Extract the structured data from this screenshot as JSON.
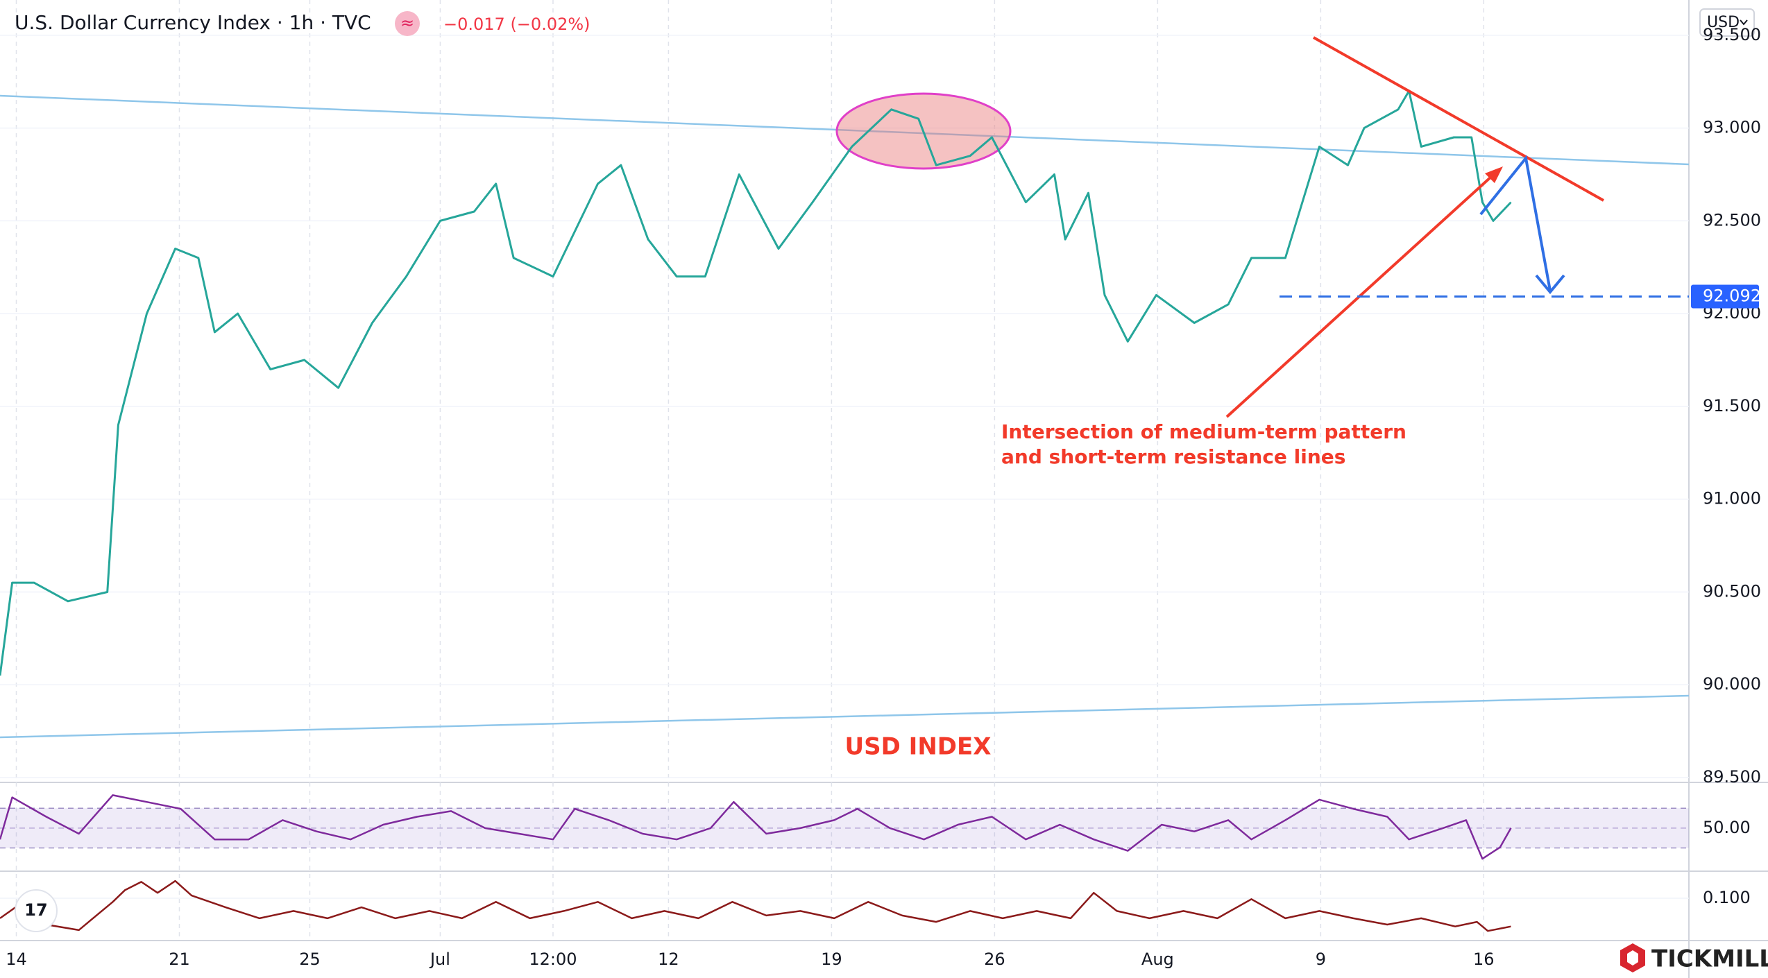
{
  "chart_data": [
    {
      "type": "line",
      "title": "U.S. Dollar Currency Index · 1h · TVC",
      "change": "−0.017 (−0.02%)",
      "currency": "USD",
      "color": "#26a69a",
      "x": [
        -12,
        -3,
        13,
        38,
        67,
        75,
        96,
        117,
        134,
        146,
        163,
        187,
        212,
        237,
        262,
        287,
        312,
        337,
        353,
        366,
        395,
        428,
        445,
        465,
        486,
        507,
        532,
        561,
        586,
        615,
        644,
        664,
        677,
        702,
        718,
        743,
        764,
        772,
        789,
        801,
        818,
        839,
        867,
        892,
        909,
        934,
        959,
        980,
        992,
        1017,
        1025,
        1034,
        1058,
        1071,
        1079,
        1087,
        1100
      ],
      "values": [
        90.05,
        90.55,
        90.55,
        90.45,
        90.5,
        91.4,
        92.0,
        92.35,
        92.3,
        91.9,
        92.0,
        91.7,
        91.75,
        91.6,
        91.95,
        92.2,
        92.5,
        92.55,
        92.7,
        92.3,
        92.2,
        92.7,
        92.8,
        92.4,
        92.2,
        92.2,
        92.75,
        92.35,
        92.6,
        92.9,
        93.1,
        93.05,
        92.8,
        92.85,
        92.95,
        92.6,
        92.75,
        92.4,
        92.65,
        92.1,
        91.85,
        92.1,
        91.95,
        92.05,
        92.3,
        92.3,
        92.9,
        92.8,
        93.0,
        93.1,
        93.2,
        92.9,
        92.95,
        92.95,
        92.6,
        92.5,
        92.6
      ],
      "xlim": [
        -12,
        1231
      ],
      "xticks": [
        {
          "value": 0,
          "label": "14"
        },
        {
          "value": 120,
          "label": "21"
        },
        {
          "value": 216,
          "label": "25"
        },
        {
          "value": 312,
          "label": "Jul"
        },
        {
          "value": 395,
          "label": "12:00"
        },
        {
          "value": 480,
          "label": "12"
        },
        {
          "value": 600,
          "label": "19"
        },
        {
          "value": 720,
          "label": "26"
        },
        {
          "value": 840,
          "label": "Aug"
        },
        {
          "value": 960,
          "label": "9"
        },
        {
          "value": 1080,
          "label": "16"
        }
      ],
      "ylim": [
        89.5,
        93.69
      ],
      "yticks": [
        {
          "value": 89.5,
          "label": "89.500"
        },
        {
          "value": 90,
          "label": "90.000"
        },
        {
          "value": 90.5,
          "label": "90.500"
        },
        {
          "value": 91,
          "label": "91.000"
        },
        {
          "value": 91.5,
          "label": "91.500"
        },
        {
          "value": 92,
          "label": "92.000"
        },
        {
          "value": 92.5,
          "label": "92.500"
        },
        {
          "value": 93,
          "label": "93.000"
        },
        {
          "value": 93.5,
          "label": "93.500"
        }
      ],
      "price_line": {
        "value": 92.092,
        "label": "92.092"
      },
      "annotations": [
        "Intersection of medium-term pattern",
        "and short-term resistance lines"
      ],
      "label": "USD INDEX",
      "brand": "TICKMILL"
    },
    {
      "type": "line",
      "color": "#7e2a9c",
      "x": [
        -12,
        -3,
        22,
        46,
        71,
        96,
        121,
        146,
        171,
        196,
        221,
        246,
        270,
        295,
        320,
        345,
        370,
        395,
        411,
        436,
        461,
        486,
        511,
        528,
        552,
        577,
        602,
        619,
        643,
        668,
        693,
        718,
        743,
        768,
        793,
        818,
        843,
        867,
        892,
        909,
        934,
        959,
        984,
        1009,
        1025,
        1050,
        1067,
        1079,
        1092,
        1100
      ],
      "values": [
        38.6,
        80.9,
        61.4,
        44.3,
        83.1,
        76.3,
        69.4,
        38.6,
        38.6,
        58,
        46.6,
        38.6,
        53.4,
        61.4,
        67.1,
        50,
        44.3,
        38.6,
        69.4,
        58,
        44.3,
        38.6,
        50,
        76.3,
        44.3,
        50,
        58,
        69.4,
        50,
        38.6,
        53.4,
        61.4,
        38.6,
        53.4,
        38.6,
        27.1,
        53.4,
        46.6,
        58,
        38.6,
        58,
        78.6,
        69.4,
        61.4,
        38.6,
        50,
        58,
        19.1,
        30.6,
        50
      ],
      "ylim": [
        8,
        89
      ],
      "yticks": [
        {
          "value": 50,
          "label": "50.00"
        }
      ],
      "bands": [
        30,
        70
      ]
    },
    {
      "type": "line",
      "color": "#8b1a1a",
      "x": [
        -12,
        5,
        22,
        46,
        71,
        80,
        92,
        104,
        117,
        129,
        154,
        179,
        204,
        229,
        254,
        279,
        304,
        328,
        353,
        378,
        403,
        428,
        453,
        477,
        502,
        527,
        552,
        577,
        602,
        627,
        652,
        677,
        702,
        726,
        751,
        776,
        793,
        810,
        834,
        859,
        884,
        909,
        934,
        959,
        984,
        1009,
        1034,
        1059,
        1075,
        1083,
        1100
      ],
      "values": [
        0.078,
        0.096,
        0.071,
        0.065,
        0.096,
        0.109,
        0.118,
        0.106,
        0.119,
        0.103,
        0.09,
        0.078,
        0.086,
        0.078,
        0.09,
        0.078,
        0.086,
        0.078,
        0.096,
        0.078,
        0.086,
        0.096,
        0.078,
        0.086,
        0.078,
        0.096,
        0.081,
        0.086,
        0.078,
        0.096,
        0.081,
        0.074,
        0.086,
        0.078,
        0.086,
        0.078,
        0.106,
        0.086,
        0.078,
        0.086,
        0.078,
        0.099,
        0.078,
        0.086,
        0.078,
        0.071,
        0.078,
        0.069,
        0.074,
        0.064,
        0.069
      ],
      "ylim": [
        0.055,
        0.1275
      ],
      "yticks": [
        {
          "value": 0.1,
          "label": "0.100"
        }
      ]
    }
  ]
}
